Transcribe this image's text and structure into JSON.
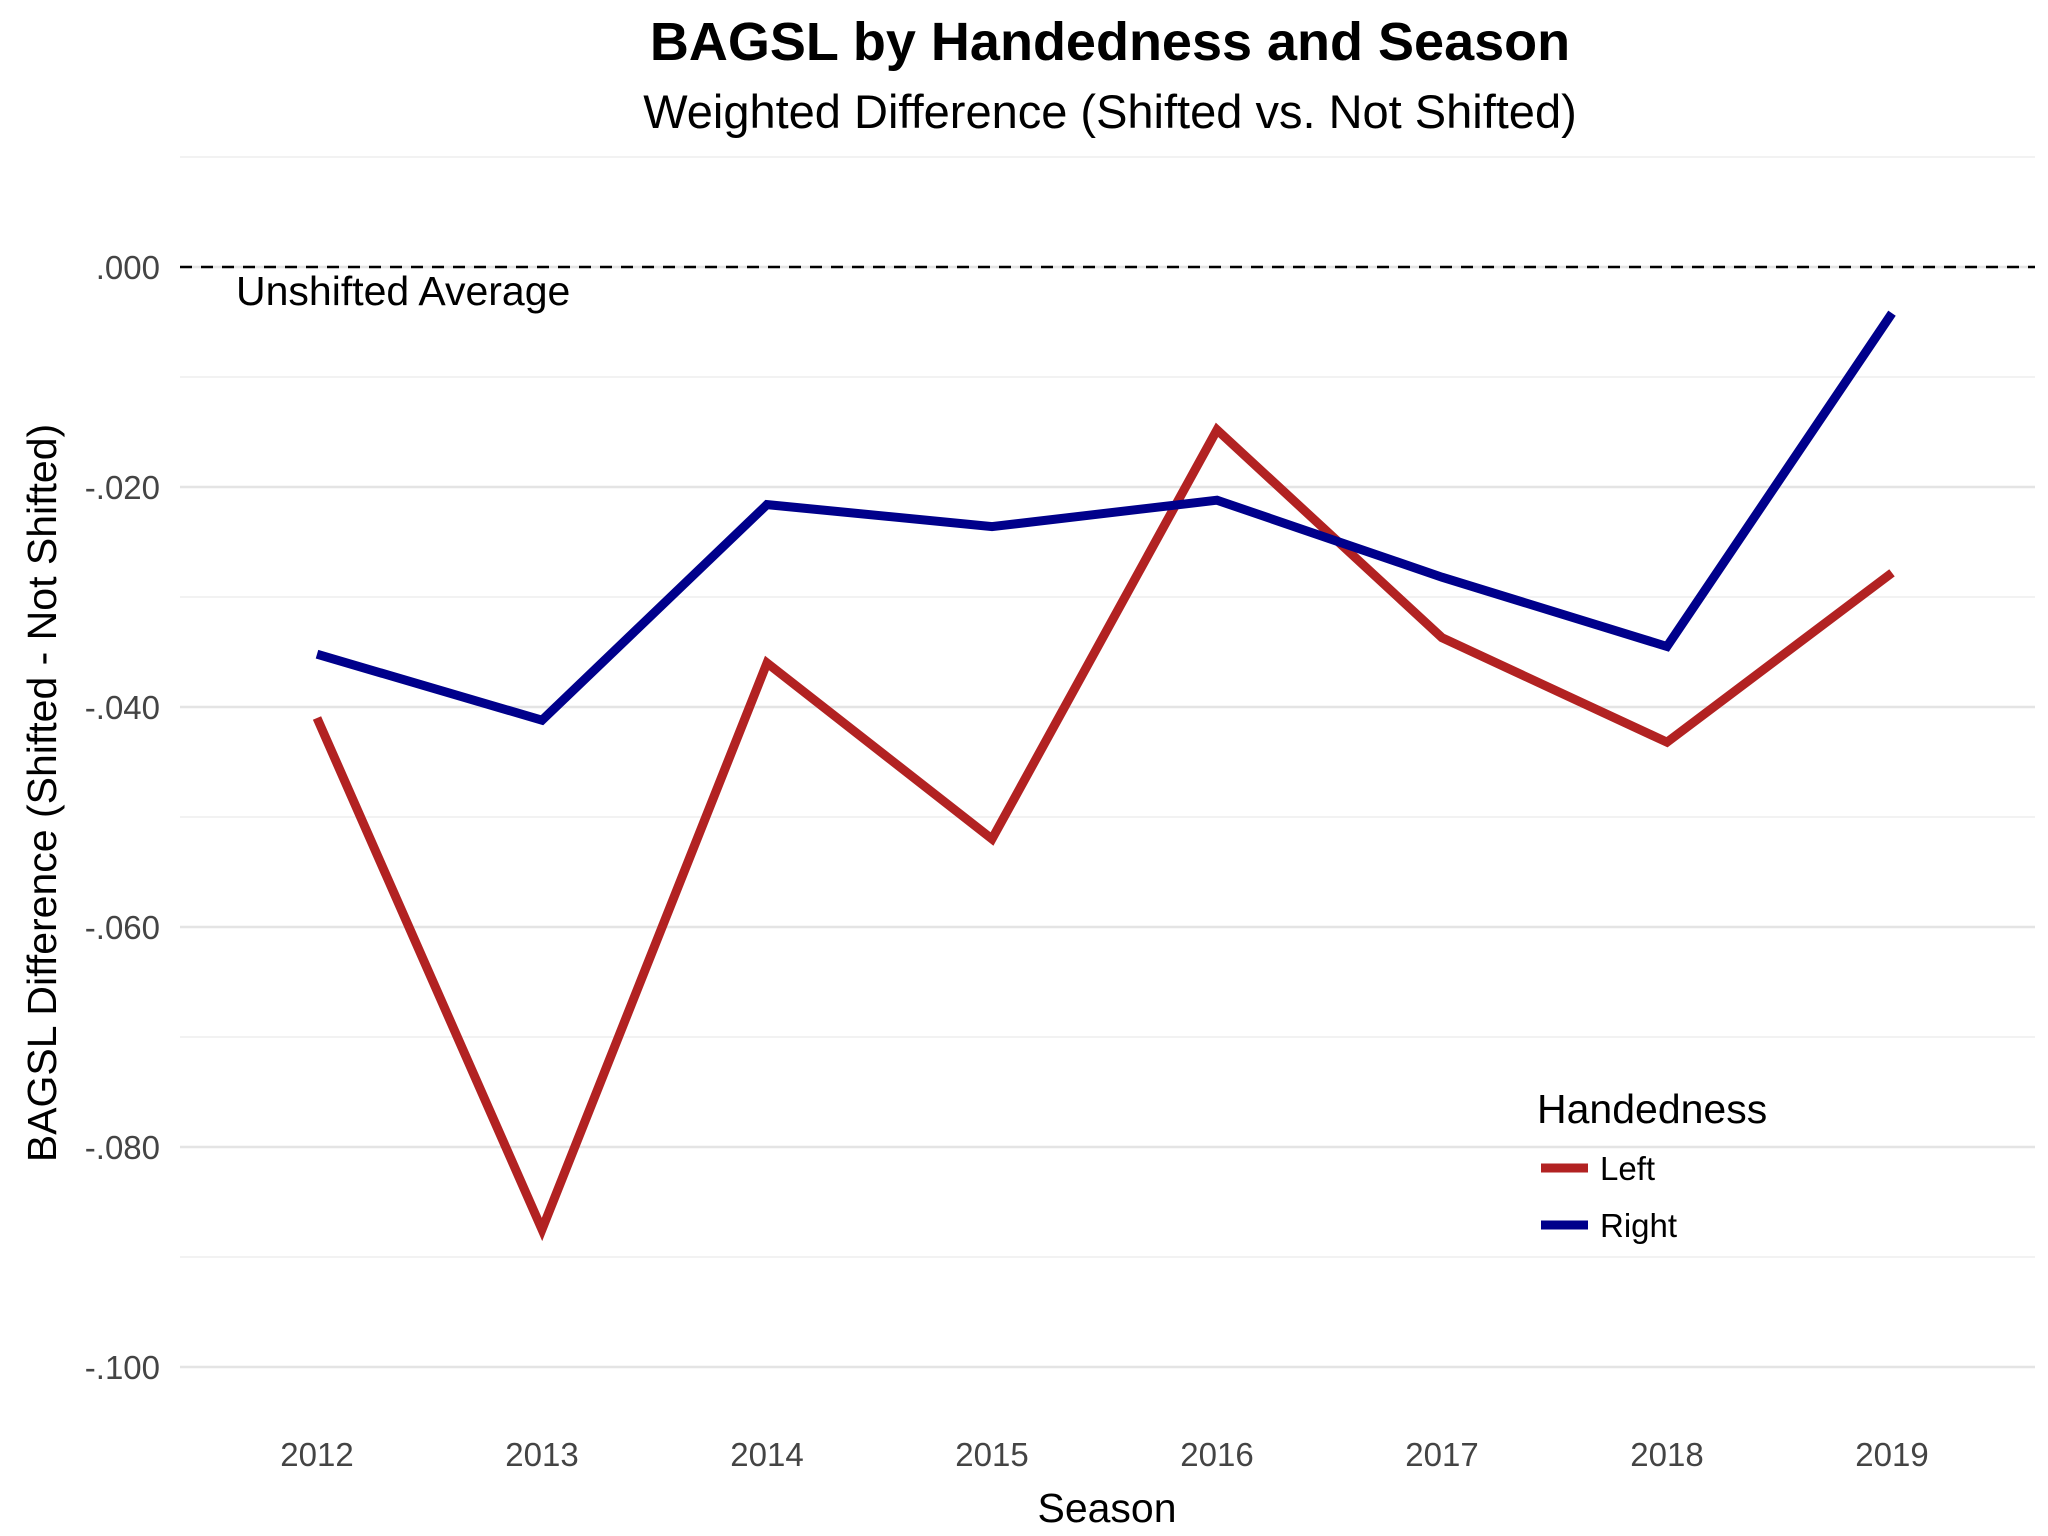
{
  "chart_data": {
    "type": "line",
    "title": "BAGSL by Handedness and Season",
    "subtitle": "Weighted Difference (Shifted vs. Not Shifted)",
    "xlabel": "Season",
    "ylabel": "BAGSL Difference (Shifted - Not Shifted)",
    "x": [
      2012,
      2013,
      2014,
      2015,
      2016,
      2017,
      2018,
      2019
    ],
    "x_tick_labels": [
      "2012",
      "2013",
      "2014",
      "2015",
      "2016",
      "2017",
      "2018",
      "2019"
    ],
    "ylim": [
      -0.1,
      0.01
    ],
    "y_ticks": [
      0,
      -0.02,
      -0.04,
      -0.06,
      -0.08,
      -0.1
    ],
    "y_tick_labels": [
      ".000",
      "-.020",
      "-.040",
      "-.060",
      "-.080",
      "-.100"
    ],
    "grid": true,
    "reference_line": {
      "y": 0,
      "style": "dashed",
      "label": "Unshifted Average"
    },
    "legend": {
      "title": "Handedness",
      "position": "bottom-right"
    },
    "series": [
      {
        "name": "Left",
        "color": "#B22222",
        "values": [
          -0.041,
          -0.0875,
          -0.036,
          -0.052,
          -0.0148,
          -0.0337,
          -0.0432,
          -0.0278
        ]
      },
      {
        "name": "Right",
        "color": "#00008B",
        "values": [
          -0.0352,
          -0.0412,
          -0.0216,
          -0.0236,
          -0.0212,
          -0.0282,
          -0.0345,
          -0.0042
        ]
      }
    ]
  }
}
